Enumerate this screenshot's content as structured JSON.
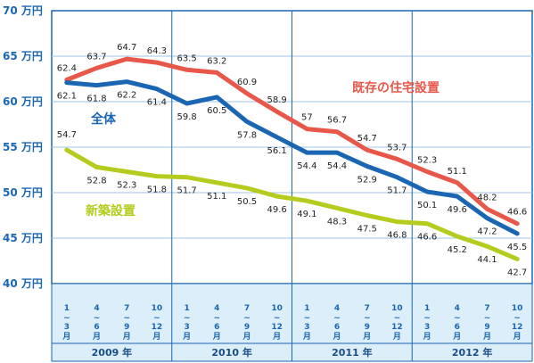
{
  "chart_data": {
    "type": "line",
    "categories": [
      {
        "year": "2009",
        "quarter": [
          "1",
          "~",
          "3",
          "月"
        ]
      },
      {
        "year": "2009",
        "quarter": [
          "4",
          "~",
          "6",
          "月"
        ]
      },
      {
        "year": "2009",
        "quarter": [
          "7",
          "~",
          "9",
          "月"
        ]
      },
      {
        "year": "2009",
        "quarter": [
          "10",
          "~",
          "12",
          "月"
        ]
      },
      {
        "year": "2010",
        "quarter": [
          "1",
          "~",
          "3",
          "月"
        ]
      },
      {
        "year": "2010",
        "quarter": [
          "4",
          "~",
          "6",
          "月"
        ]
      },
      {
        "year": "2010",
        "quarter": [
          "7",
          "~",
          "9",
          "月"
        ]
      },
      {
        "year": "2010",
        "quarter": [
          "10",
          "~",
          "12",
          "月"
        ]
      },
      {
        "year": "2011",
        "quarter": [
          "1",
          "~",
          "3",
          "月"
        ]
      },
      {
        "year": "2011",
        "quarter": [
          "4",
          "~",
          "6",
          "月"
        ]
      },
      {
        "year": "2011",
        "quarter": [
          "7",
          "~",
          "9",
          "月"
        ]
      },
      {
        "year": "2011",
        "quarter": [
          "10",
          "~",
          "12",
          "月"
        ]
      },
      {
        "year": "2012",
        "quarter": [
          "1",
          "~",
          "3",
          "月"
        ]
      },
      {
        "year": "2012",
        "quarter": [
          "4",
          "~",
          "6",
          "月"
        ]
      },
      {
        "year": "2012",
        "quarter": [
          "7",
          "~",
          "9",
          "月"
        ]
      },
      {
        "year": "2012",
        "quarter": [
          "10",
          "~",
          "12",
          "月"
        ]
      }
    ],
    "years": [
      "2009 年",
      "2010 年",
      "2011 年",
      "2012 年"
    ],
    "y_ticks": [
      {
        "value": 40,
        "label": "40 万円"
      },
      {
        "value": 45,
        "label": "45 万円"
      },
      {
        "value": 50,
        "label": "50 万円"
      },
      {
        "value": 55,
        "label": "55 万円"
      },
      {
        "value": 60,
        "label": "60 万円"
      },
      {
        "value": 65,
        "label": "65 万円"
      },
      {
        "value": 70,
        "label": "70 万円"
      }
    ],
    "ylim": [
      40,
      70
    ],
    "grid": "horizontal",
    "series": [
      {
        "name": "既存の住宅設置",
        "color": "#e8584a",
        "values": [
          62.4,
          63.7,
          64.7,
          64.3,
          63.5,
          63.2,
          60.9,
          58.9,
          57,
          56.7,
          54.7,
          53.7,
          52.3,
          51.1,
          48.2,
          46.6
        ],
        "labels": [
          "62.4",
          "63.7",
          "64.7",
          "64.3",
          "63.5",
          "63.2",
          "60.9",
          "58.9",
          "57",
          "56.7",
          "54.7",
          "53.7",
          "52.3",
          "51.1",
          "48.2",
          "46.6"
        ]
      },
      {
        "name": "全体",
        "color": "#1a66b3",
        "values": [
          62.1,
          61.8,
          62.2,
          61.4,
          59.8,
          60.5,
          57.8,
          56.1,
          54.4,
          54.4,
          52.9,
          51.7,
          50.1,
          49.6,
          47.2,
          45.5
        ],
        "labels": [
          "62.1",
          "61.8",
          "62.2",
          "61.4",
          "59.8",
          "60.5",
          "57.8",
          "56.1",
          "54.4",
          "54.4",
          "52.9",
          "51.7",
          "50.1",
          "49.6",
          "47.2",
          "45.5"
        ]
      },
      {
        "name": "新築設置",
        "color": "#b5cc1f",
        "values": [
          54.7,
          52.8,
          52.3,
          51.8,
          51.7,
          51.1,
          50.5,
          49.6,
          49.1,
          48.3,
          47.5,
          46.8,
          46.6,
          45.2,
          44.1,
          42.7
        ],
        "labels": [
          "54.7",
          "52.8",
          "52.3",
          "51.8",
          "51.7",
          "51.1",
          "50.5",
          "49.6",
          "49.1",
          "48.3",
          "47.5",
          "46.8",
          "46.6",
          "45.2",
          "44.1",
          "42.7"
        ]
      }
    ]
  }
}
